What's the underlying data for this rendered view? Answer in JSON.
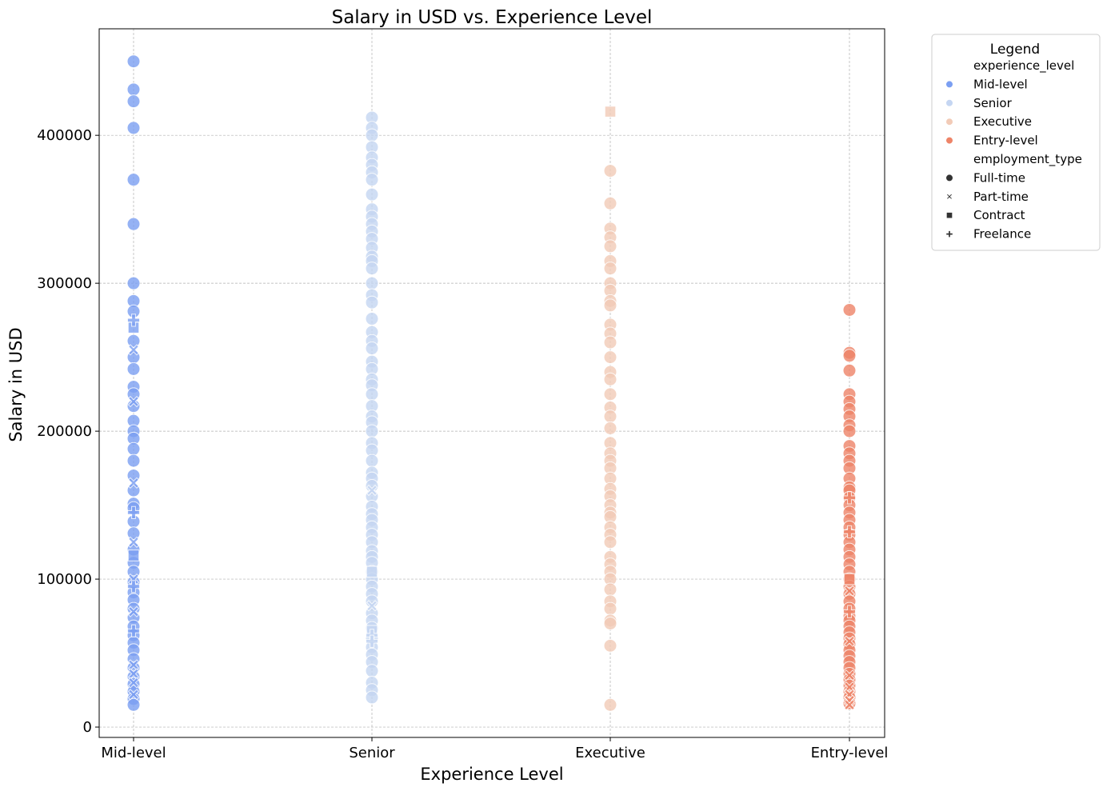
{
  "chart_data": {
    "type": "scatter",
    "title": "Salary in USD vs. Experience Level",
    "xlabel": "Experience Level",
    "ylabel": "Salary in USD",
    "categories": [
      "Mid-level",
      "Senior",
      "Executive",
      "Entry-level"
    ],
    "ylim": [
      -7000,
      472000
    ],
    "yticks": [
      0,
      100000,
      200000,
      300000,
      400000
    ],
    "grid": true,
    "point_alpha": 0.8,
    "legend": {
      "title": "Legend",
      "placement": "outside-top-right",
      "hue_title": "experience_level",
      "style_title": "employment_type",
      "hue_entries": [
        {
          "label": "Mid-level",
          "color": "#7b9ff2"
        },
        {
          "label": "Senior",
          "color": "#c5d6f2"
        },
        {
          "label": "Executive",
          "color": "#f2cbb7"
        },
        {
          "label": "Entry-level",
          "color": "#ee8468"
        }
      ],
      "style_entries": [
        {
          "label": "Full-time",
          "marker": "circle"
        },
        {
          "label": "Part-time",
          "marker": "x"
        },
        {
          "label": "Contract",
          "marker": "square"
        },
        {
          "label": "Freelance",
          "marker": "plus"
        }
      ]
    },
    "series": [
      {
        "category": "Mid-level",
        "color": "#7b9ff2",
        "full_time": [
          450000,
          431000,
          423000,
          405000,
          370000,
          340000,
          300000,
          288000,
          281000,
          261000,
          250000,
          242000,
          230000,
          225000,
          217000,
          207000,
          200000,
          195000,
          188000,
          180000,
          170000,
          160000,
          151000,
          148000,
          139000,
          131000,
          120000,
          111000,
          105000,
          98000,
          91000,
          86000,
          80000,
          74000,
          68000,
          62000,
          57000,
          52000,
          46000,
          40000,
          34000,
          29000,
          24000,
          19000,
          15000
        ],
        "part_time": [
          255000,
          220000,
          165000,
          125000,
          100000,
          78000,
          42000,
          36000,
          30000,
          22000
        ],
        "contract": [
          270000,
          116000
        ],
        "freelance": [
          275000,
          145000,
          95000,
          65000
        ]
      },
      {
        "category": "Senior",
        "color": "#c5d6f2",
        "full_time": [
          412000,
          405000,
          400000,
          392000,
          385000,
          380000,
          375000,
          370000,
          360000,
          350000,
          345000,
          340000,
          335000,
          330000,
          324000,
          318000,
          315000,
          310000,
          300000,
          292000,
          287000,
          276000,
          267000,
          261000,
          256000,
          247000,
          242000,
          235000,
          231000,
          225000,
          217000,
          210000,
          206000,
          200000,
          192000,
          187000,
          180000,
          172000,
          168000,
          163000,
          156000,
          149000,
          144000,
          140000,
          135000,
          130000,
          125000,
          119000,
          115000,
          111000,
          105000,
          100000,
          95000,
          90000,
          85000,
          77000,
          72000,
          67000,
          60000,
          54000,
          49000,
          44000,
          38000,
          30000,
          25000,
          20000
        ],
        "part_time": [
          160000,
          82000
        ],
        "contract": [
          105000,
          65000
        ],
        "freelance": [
          62000,
          58000
        ]
      },
      {
        "category": "Executive",
        "color": "#f2cbb7",
        "full_time": [
          376000,
          354000,
          337000,
          331000,
          325000,
          315000,
          310000,
          300000,
          295000,
          288000,
          285000,
          272000,
          266000,
          260000,
          250000,
          240000,
          235000,
          225000,
          216000,
          210000,
          202000,
          192000,
          185000,
          180000,
          175000,
          168000,
          161000,
          156000,
          150000,
          145000,
          142000,
          135000,
          130000,
          125000,
          115000,
          110000,
          105000,
          100000,
          93000,
          85000,
          80000,
          72000,
          70000,
          55000,
          15000
        ],
        "part_time": [],
        "contract": [
          416000
        ],
        "freelance": []
      },
      {
        "category": "Entry-level",
        "color": "#ee8468",
        "full_time": [
          282000,
          253000,
          251000,
          241000,
          225000,
          220000,
          215000,
          210000,
          204000,
          200000,
          190000,
          185000,
          180000,
          175000,
          168000,
          162000,
          160000,
          155000,
          150000,
          145000,
          140000,
          135000,
          130000,
          125000,
          120000,
          115000,
          110000,
          105000,
          100000,
          95000,
          90000,
          85000,
          80000,
          75000,
          72000,
          68000,
          64000,
          60000,
          56000,
          52000,
          48000,
          44000,
          40000,
          36000,
          32000,
          28000,
          24000,
          20000,
          16000
        ],
        "part_time": [
          92000,
          58000,
          35000,
          27000,
          22000,
          18000,
          15000
        ],
        "contract": [
          100000
        ],
        "freelance": [
          155000,
          132000,
          78000
        ]
      }
    ]
  }
}
